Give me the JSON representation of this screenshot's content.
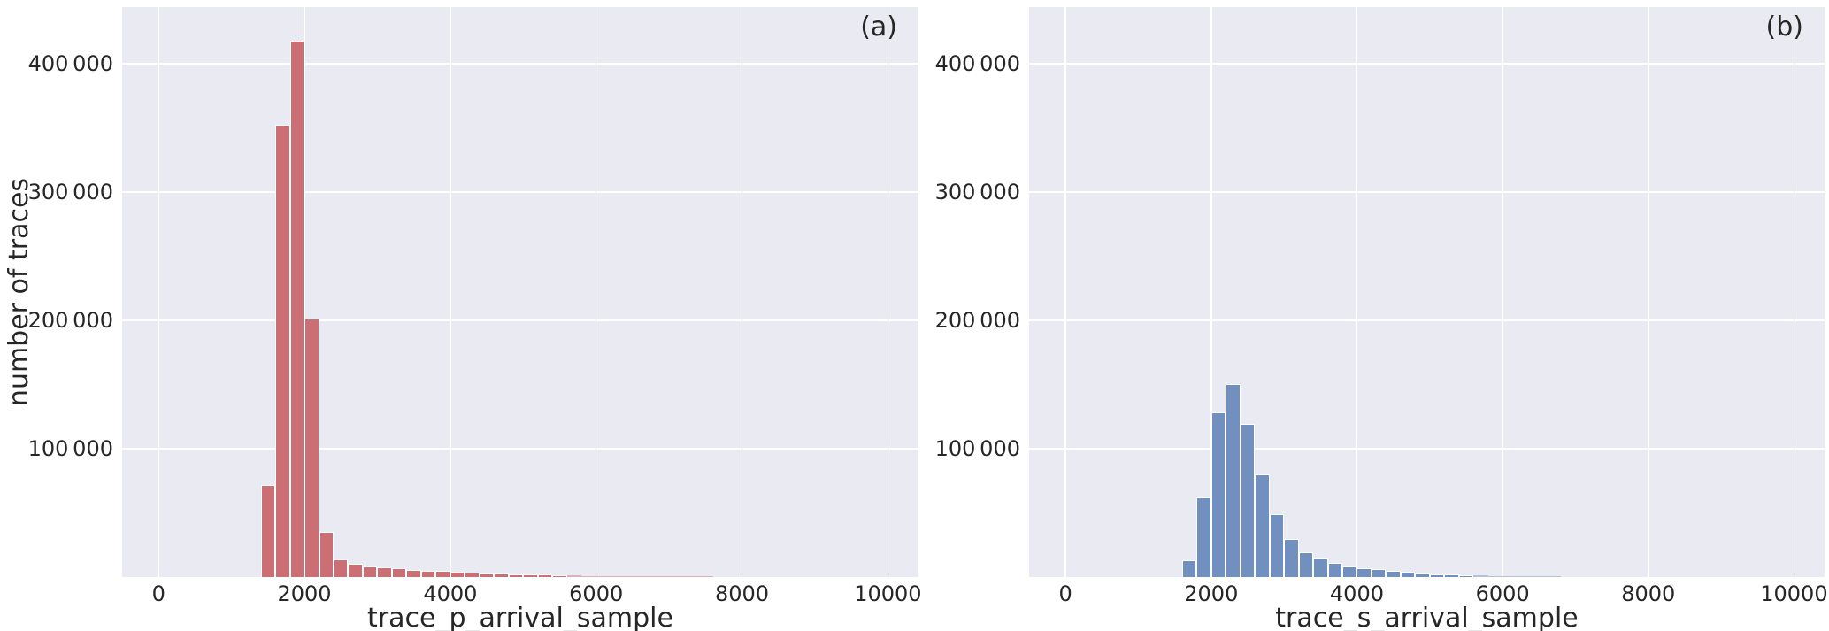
{
  "figure": {
    "background": "#ffffff",
    "plot_background": "#eaeaf2",
    "grid_color": "#ffffff",
    "text_color": "#262626"
  },
  "chart_data": [
    {
      "type": "bar",
      "kind": "histogram",
      "panel_label": "(a)",
      "xlabel": "trace_p_arrival_sample",
      "ylabel": "number of traces",
      "bar_fill": "#cb6f74",
      "bar_edge": "#ffffff",
      "xlim": [
        -500,
        10420
      ],
      "ylim": [
        0,
        444000
      ],
      "grid": true,
      "x_ticks": [
        0,
        2000,
        4000,
        6000,
        8000,
        10000
      ],
      "x_tick_labels": [
        "0",
        "2000",
        "4000",
        "6000",
        "8000",
        "10000"
      ],
      "y_ticks": [
        100000,
        200000,
        300000,
        400000
      ],
      "y_tick_labels": [
        "100 000",
        "200 000",
        "300 000",
        "400 000"
      ],
      "bin_width": 200,
      "bin_starts": [
        1400,
        1600,
        1800,
        2000,
        2200,
        2400,
        2600,
        2800,
        3000,
        3200,
        3400,
        3600,
        3800,
        4000,
        4200,
        4400,
        4600,
        4800,
        5000,
        5200,
        5400,
        5600,
        5800,
        6000,
        6200,
        6400,
        6600,
        6800,
        7000,
        7200,
        7400
      ],
      "counts": [
        72000,
        352000,
        418000,
        201000,
        35000,
        14000,
        10200,
        8600,
        7400,
        6600,
        5800,
        5100,
        4500,
        4000,
        3600,
        3100,
        2700,
        2400,
        2100,
        1800,
        1500,
        1200,
        950,
        750,
        600,
        480,
        380,
        300,
        240,
        190,
        150
      ]
    },
    {
      "type": "bar",
      "kind": "histogram",
      "panel_label": "(b)",
      "xlabel": "trace_s_arrival_sample",
      "ylabel": "",
      "bar_fill": "#7190bf",
      "bar_edge": "#ffffff",
      "xlim": [
        -500,
        10420
      ],
      "ylim": [
        0,
        444000
      ],
      "grid": true,
      "x_ticks": [
        0,
        2000,
        4000,
        6000,
        8000,
        10000
      ],
      "x_tick_labels": [
        "0",
        "2000",
        "4000",
        "6000",
        "8000",
        "10000"
      ],
      "y_ticks": [
        100000,
        200000,
        300000,
        400000
      ],
      "y_tick_labels": [
        "100 000",
        "200 000",
        "300 000",
        "400 000"
      ],
      "bin_width": 200,
      "bin_starts": [
        1600,
        1800,
        2000,
        2200,
        2400,
        2600,
        2800,
        3000,
        3200,
        3400,
        3600,
        3800,
        4000,
        4200,
        4400,
        4600,
        4800,
        5000,
        5200,
        5400,
        5600,
        5800,
        6000,
        6200,
        6400,
        6600
      ],
      "counts": [
        13000,
        62000,
        128000,
        150000,
        119000,
        80000,
        49000,
        29500,
        19000,
        14500,
        11000,
        8200,
        6700,
        6000,
        4700,
        4000,
        3100,
        2300,
        1800,
        1400,
        1100,
        850,
        650,
        500,
        400,
        300
      ]
    }
  ]
}
